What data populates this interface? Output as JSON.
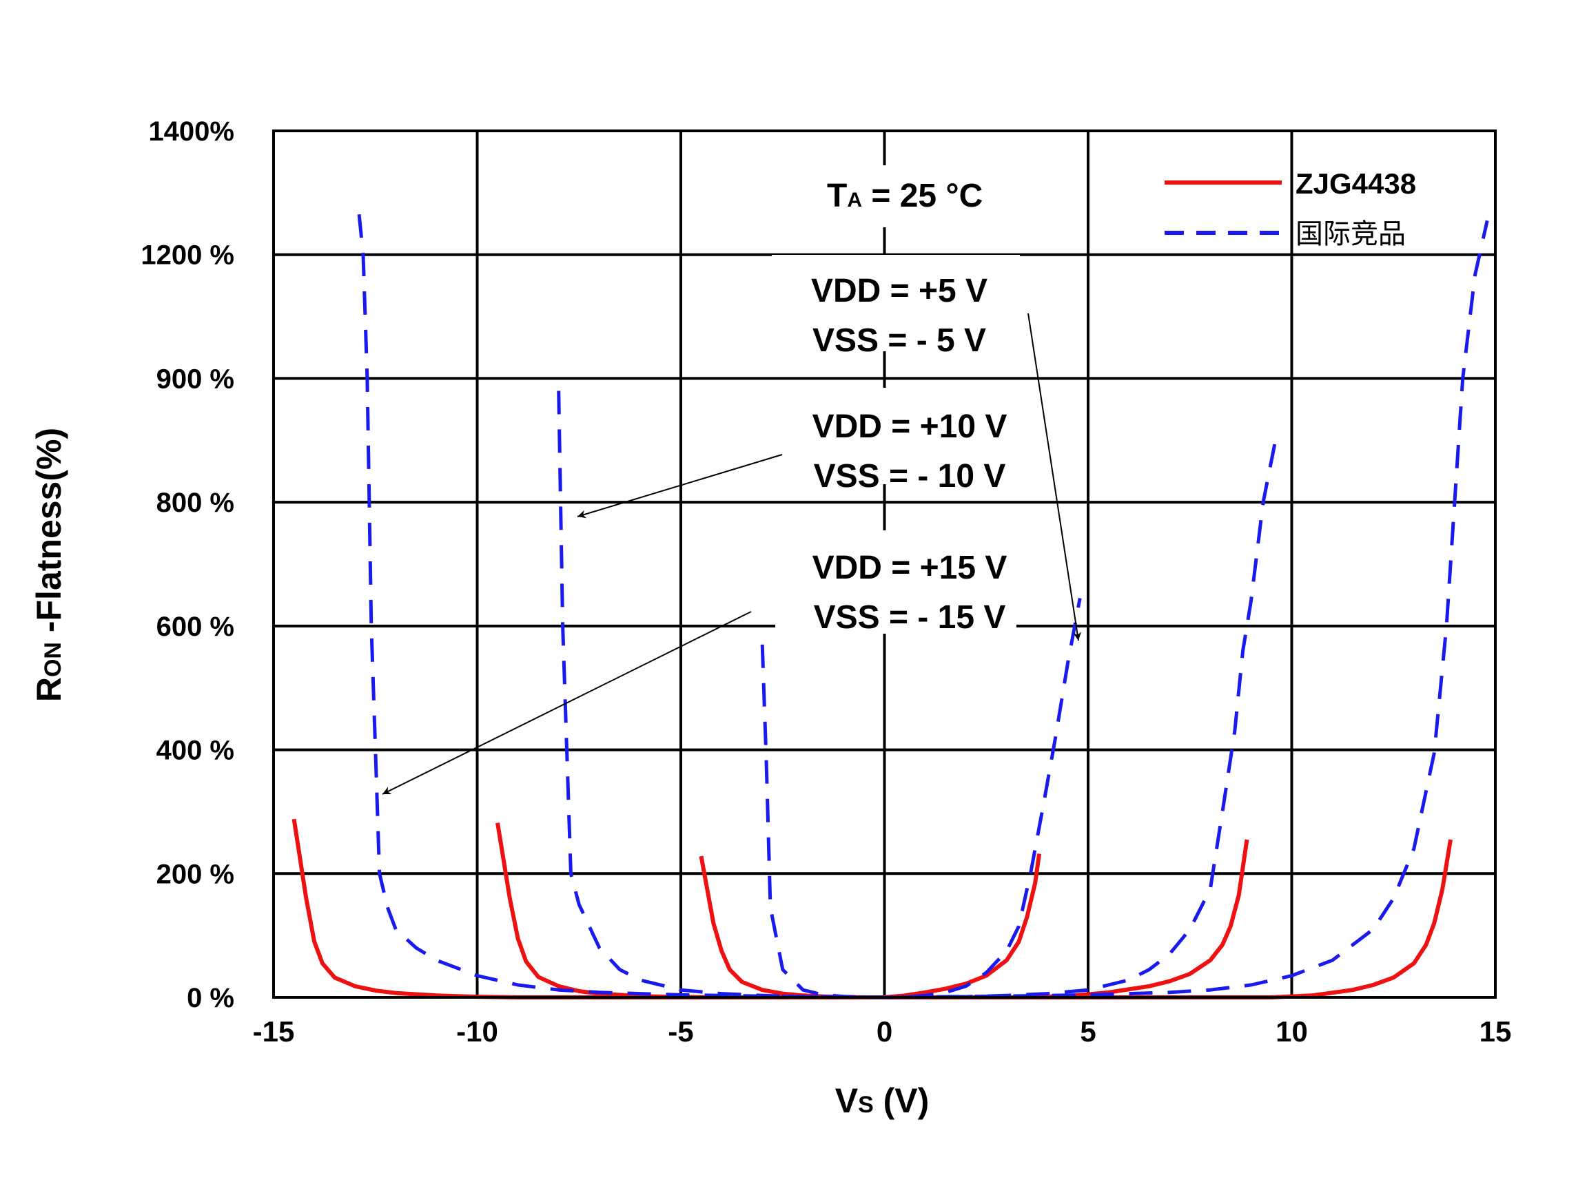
{
  "chart_data": {
    "type": "line",
    "xlabel": {
      "main": "V",
      "sub": "S",
      "tail": " (V)"
    },
    "ylabel": {
      "main": "R",
      "sub": "ON",
      "tail": " -Flatness(%)"
    },
    "x_ticks": [
      "-15",
      "-10",
      "-5",
      "0",
      "5",
      "10",
      "15"
    ],
    "y_ticks": [
      "0 %",
      "200 %",
      "400 %",
      "600 %",
      "800 %",
      "900 %",
      "1200 %",
      "1400%"
    ],
    "xlim": [
      -15,
      15
    ],
    "grid": true,
    "legend_position": "top-right",
    "colors": {
      "zjg": "#ee1111",
      "competitor": "#1a1aee"
    },
    "series": [
      {
        "name": "ZJG4438",
        "group": "±5 V",
        "style": "solid",
        "points": [
          [
            -4.5,
            228
          ],
          [
            -4.2,
            120
          ],
          [
            -4.0,
            75
          ],
          [
            -3.8,
            45
          ],
          [
            -3.5,
            25
          ],
          [
            -3.0,
            12
          ],
          [
            -2.5,
            6
          ],
          [
            -2.0,
            3
          ],
          [
            -1.5,
            1.5
          ],
          [
            -1.0,
            0.5
          ],
          [
            -0.5,
            0
          ],
          [
            0,
            0
          ],
          [
            0.5,
            3
          ],
          [
            1.0,
            8
          ],
          [
            1.5,
            14
          ],
          [
            2.0,
            22
          ],
          [
            2.5,
            35
          ],
          [
            3.0,
            60
          ],
          [
            3.3,
            90
          ],
          [
            3.5,
            130
          ],
          [
            3.7,
            185
          ],
          [
            3.8,
            232
          ]
        ]
      },
      {
        "name": "ZJG4438",
        "group": "±10 V",
        "style": "solid",
        "points": [
          [
            -9.5,
            282
          ],
          [
            -9.2,
            160
          ],
          [
            -9.0,
            95
          ],
          [
            -8.8,
            58
          ],
          [
            -8.5,
            33
          ],
          [
            -8.0,
            18
          ],
          [
            -7.5,
            10
          ],
          [
            -7.0,
            6
          ],
          [
            -6.0,
            2
          ],
          [
            -5.0,
            0.5
          ],
          [
            -4.0,
            0
          ],
          [
            0,
            0
          ],
          [
            3.5,
            0
          ],
          [
            4.5,
            2
          ],
          [
            5.5,
            8
          ],
          [
            6.5,
            18
          ],
          [
            7.0,
            26
          ],
          [
            7.5,
            38
          ],
          [
            8.0,
            60
          ],
          [
            8.3,
            85
          ],
          [
            8.5,
            115
          ],
          [
            8.7,
            165
          ],
          [
            8.9,
            255
          ]
        ]
      },
      {
        "name": "ZJG4438",
        "group": "±15 V",
        "style": "solid",
        "points": [
          [
            -14.5,
            288
          ],
          [
            -14.2,
            160
          ],
          [
            -14.0,
            90
          ],
          [
            -13.8,
            55
          ],
          [
            -13.5,
            32
          ],
          [
            -13.0,
            18
          ],
          [
            -12.5,
            11
          ],
          [
            -12.0,
            7
          ],
          [
            -11.0,
            3
          ],
          [
            -10.0,
            1
          ],
          [
            -9.0,
            0
          ],
          [
            0,
            0
          ],
          [
            9.5,
            0
          ],
          [
            10.5,
            3
          ],
          [
            11.5,
            12
          ],
          [
            12.0,
            20
          ],
          [
            12.5,
            32
          ],
          [
            13.0,
            55
          ],
          [
            13.3,
            85
          ],
          [
            13.5,
            120
          ],
          [
            13.7,
            175
          ],
          [
            13.9,
            255
          ]
        ]
      },
      {
        "name": "国际竞品",
        "group": "±5 V",
        "style": "dashed",
        "points": [
          [
            -3.0,
            570
          ],
          [
            -2.9,
            380
          ],
          [
            -2.8,
            145
          ],
          [
            -2.5,
            45
          ],
          [
            -2.0,
            12
          ],
          [
            -1.5,
            4
          ],
          [
            -1.0,
            1.5
          ],
          [
            -0.5,
            0
          ],
          [
            0,
            0
          ],
          [
            0.5,
            0
          ],
          [
            1.0,
            3
          ],
          [
            1.5,
            8
          ],
          [
            2.0,
            18
          ],
          [
            2.5,
            40
          ],
          [
            3.0,
            75
          ],
          [
            3.3,
            115
          ],
          [
            3.6,
            205
          ],
          [
            3.9,
            310
          ],
          [
            4.2,
            420
          ],
          [
            4.5,
            540
          ],
          [
            4.8,
            645
          ]
        ]
      },
      {
        "name": "国际竞品",
        "group": "±10 V",
        "style": "dashed",
        "points": [
          [
            -8.0,
            890
          ],
          [
            -7.9,
            600
          ],
          [
            -7.8,
            400
          ],
          [
            -7.7,
            200
          ],
          [
            -7.5,
            150
          ],
          [
            -7.0,
            80
          ],
          [
            -6.5,
            45
          ],
          [
            -6.0,
            28
          ],
          [
            -5.0,
            12
          ],
          [
            -4.0,
            6
          ],
          [
            -3.0,
            3
          ],
          [
            -2.0,
            1
          ],
          [
            0,
            0
          ],
          [
            2.0,
            1
          ],
          [
            3.0,
            3
          ],
          [
            4.0,
            6
          ],
          [
            5.0,
            12
          ],
          [
            6.0,
            28
          ],
          [
            6.5,
            45
          ],
          [
            7.0,
            70
          ],
          [
            7.5,
            110
          ],
          [
            8.0,
            175
          ],
          [
            8.3,
            300
          ],
          [
            8.6,
            430
          ],
          [
            8.8,
            560
          ],
          [
            9.0,
            640
          ],
          [
            9.3,
            800
          ],
          [
            9.6,
            850
          ]
        ]
      },
      {
        "name": "国际竞品",
        "group": "±15 V",
        "style": "dashed",
        "points": [
          [
            -12.9,
            1265
          ],
          [
            -12.8,
            1200
          ],
          [
            -12.7,
            900
          ],
          [
            -12.6,
            600
          ],
          [
            -12.5,
            400
          ],
          [
            -12.4,
            200
          ],
          [
            -12.2,
            145
          ],
          [
            -12.0,
            110
          ],
          [
            -11.5,
            80
          ],
          [
            -11.0,
            60
          ],
          [
            -10.0,
            35
          ],
          [
            -9.0,
            20
          ],
          [
            -8.0,
            12
          ],
          [
            -7.0,
            8
          ],
          [
            -5.0,
            4
          ],
          [
            -3.0,
            2
          ],
          [
            0,
            0
          ],
          [
            3.0,
            2
          ],
          [
            5.0,
            4
          ],
          [
            7.0,
            8
          ],
          [
            8.0,
            12
          ],
          [
            9.0,
            20
          ],
          [
            10.0,
            35
          ],
          [
            11.0,
            60
          ],
          [
            12.0,
            110
          ],
          [
            12.5,
            160
          ],
          [
            13.0,
            240
          ],
          [
            13.5,
            395
          ],
          [
            13.8,
            600
          ],
          [
            14.0,
            800
          ],
          [
            14.2,
            900
          ],
          [
            14.5,
            1150
          ],
          [
            14.8,
            1255
          ]
        ]
      }
    ],
    "legend": [
      {
        "label": "ZJG4438",
        "style": "solid"
      },
      {
        "label": "国际竞品",
        "style": "dashed"
      }
    ],
    "annotations": {
      "temperature": {
        "main": "T",
        "sub": "A",
        "tail": " = 25 °C"
      },
      "supplies": [
        {
          "vdd": "VDD = +5 V",
          "vss": "VSS = - 5 V"
        },
        {
          "vdd": "VDD = +10 V",
          "vss": "VSS = - 10 V"
        },
        {
          "vdd": "VDD = +15 V",
          "vss": "VSS = - 15 V"
        }
      ]
    }
  }
}
